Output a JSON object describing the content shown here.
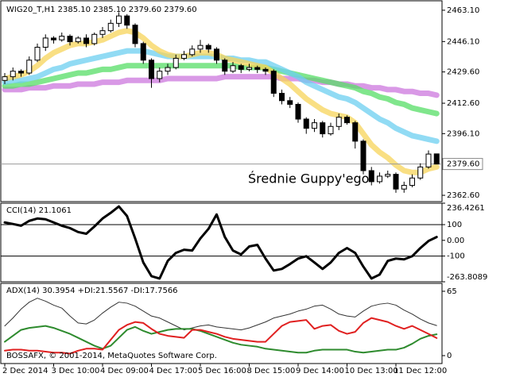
{
  "chart_data": [
    {
      "type": "candlestick",
      "title": "WIG20_T,H1  2385.10 2385.10 2379.60 2379.60",
      "annotation": "Średnie Guppy'ego",
      "categories": [
        "2 Dec 2014",
        null,
        null,
        null,
        null,
        null,
        "3 Dec 10:00",
        null,
        null,
        null,
        null,
        null,
        "4 Dec 09:00",
        null,
        null,
        null,
        null,
        null,
        "4 Dec 17:00",
        null,
        null,
        null,
        null,
        null,
        "5 Dec 16:00",
        null,
        null,
        null,
        null,
        null,
        "8 Dec 15:00",
        null,
        null,
        null,
        null,
        null,
        "9 Dec 14:00",
        null,
        null,
        null,
        null,
        null,
        "10 Dec 13:00",
        null,
        null,
        null,
        null,
        null,
        "11 Dec 12:00",
        null,
        null,
        null,
        null,
        null
      ],
      "open": [
        2425,
        2427,
        2430,
        2429,
        2436,
        2443,
        2448,
        2447,
        2449,
        2446,
        2448,
        2445,
        2450,
        2452,
        2456,
        2460,
        2455,
        2445,
        2436,
        2426,
        2430,
        2432,
        2437,
        2439,
        2442,
        2444,
        2442,
        2436,
        2430,
        2433,
        2431,
        2432,
        2431,
        2430,
        2418,
        2414,
        2412,
        2404,
        2399,
        2402,
        2396,
        2400,
        2405,
        2402,
        2392,
        2376,
        2370,
        2373,
        2374,
        2366,
        2368,
        2372,
        2378,
        2385.1
      ],
      "high": [
        2429,
        2432,
        2431,
        2438,
        2445,
        2450,
        2449,
        2451,
        2450,
        2449,
        2450,
        2451,
        2454,
        2458,
        2462,
        2461,
        2456,
        2446,
        2437,
        2432,
        2434,
        2439,
        2441,
        2444,
        2447,
        2445,
        2443,
        2437,
        2435,
        2434,
        2434,
        2433,
        2432,
        2431,
        2420,
        2416,
        2413,
        2405,
        2404,
        2403,
        2402,
        2407,
        2406,
        2403,
        2393,
        2378,
        2375,
        2376,
        2375,
        2370,
        2374,
        2380,
        2387,
        2385.1
      ],
      "low": [
        2423,
        2425,
        2427,
        2428,
        2435,
        2441,
        2445,
        2446,
        2444,
        2445,
        2443,
        2444,
        2448,
        2451,
        2454,
        2453,
        2443,
        2434,
        2421,
        2424,
        2428,
        2431,
        2436,
        2438,
        2440,
        2440,
        2434,
        2428,
        2429,
        2429,
        2430,
        2429,
        2428,
        2416,
        2412,
        2410,
        2402,
        2396,
        2397,
        2394,
        2395,
        2398,
        2401,
        2388,
        2374,
        2368,
        2369,
        2372,
        2364,
        2364,
        2367,
        2371,
        2377,
        2379.6
      ],
      "close": [
        2427,
        2430,
        2429,
        2436,
        2443,
        2448,
        2447,
        2449,
        2446,
        2448,
        2445,
        2450,
        2452,
        2456,
        2460,
        2455,
        2445,
        2436,
        2426,
        2430,
        2432,
        2437,
        2439,
        2442,
        2444,
        2442,
        2436,
        2430,
        2433,
        2431,
        2432,
        2431,
        2430,
        2418,
        2414,
        2412,
        2404,
        2399,
        2402,
        2396,
        2400,
        2405,
        2402,
        2392,
        2376,
        2370,
        2373,
        2374,
        2366,
        2368,
        2372,
        2378,
        2385,
        2379.6
      ],
      "up_color": "#ffffff",
      "down_color": "#000000",
      "series": [
        {
          "color": "#cc77dd",
          "values": [
            2420,
            2420,
            2420,
            2421,
            2421,
            2421,
            2422,
            2422,
            2422,
            2423,
            2423,
            2423,
            2424,
            2424,
            2424,
            2425,
            2425,
            2425,
            2425,
            2425,
            2426,
            2426,
            2426,
            2426,
            2426,
            2426,
            2426,
            2427,
            2427,
            2427,
            2427,
            2427,
            2427,
            2427,
            2426,
            2426,
            2426,
            2425,
            2425,
            2424,
            2424,
            2423,
            2423,
            2422,
            2422,
            2421,
            2421,
            2420,
            2420,
            2419,
            2419,
            2418,
            2418,
            2417
          ]
        },
        {
          "color": "#55dd66",
          "values": [
            2422,
            2422,
            2423,
            2423,
            2424,
            2425,
            2426,
            2427,
            2428,
            2429,
            2429,
            2430,
            2431,
            2431,
            2432,
            2433,
            2433,
            2433,
            2433,
            2433,
            2433,
            2433,
            2433,
            2433,
            2433,
            2433,
            2433,
            2433,
            2433,
            2432,
            2432,
            2432,
            2432,
            2431,
            2430,
            2429,
            2428,
            2427,
            2426,
            2425,
            2424,
            2423,
            2422,
            2421,
            2419,
            2418,
            2416,
            2415,
            2413,
            2412,
            2410,
            2409,
            2408,
            2407
          ]
        },
        {
          "color": "#6ccff0",
          "values": [
            2424,
            2425,
            2425,
            2426,
            2427,
            2429,
            2431,
            2432,
            2434,
            2435,
            2436,
            2437,
            2438,
            2439,
            2440,
            2441,
            2441,
            2441,
            2440,
            2439,
            2438,
            2438,
            2438,
            2438,
            2438,
            2438,
            2438,
            2437,
            2437,
            2436,
            2436,
            2435,
            2435,
            2433,
            2431,
            2429,
            2427,
            2424,
            2422,
            2420,
            2418,
            2416,
            2415,
            2413,
            2410,
            2407,
            2404,
            2402,
            2399,
            2397,
            2395,
            2394,
            2393,
            2392
          ]
        },
        {
          "color": "#f7d45a",
          "values": [
            2426,
            2427,
            2428,
            2430,
            2433,
            2437,
            2440,
            2442,
            2444,
            2445,
            2445,
            2446,
            2447,
            2449,
            2451,
            2452,
            2451,
            2448,
            2444,
            2441,
            2439,
            2438,
            2438,
            2439,
            2440,
            2440,
            2439,
            2437,
            2436,
            2435,
            2434,
            2433,
            2432,
            2429,
            2426,
            2423,
            2419,
            2415,
            2412,
            2409,
            2407,
            2406,
            2405,
            2402,
            2396,
            2390,
            2386,
            2383,
            2379,
            2376,
            2375,
            2375,
            2377,
            2378
          ]
        }
      ],
      "ylim": [
        2359.18,
        2468.23
      ],
      "yticks": [
        {
          "value": 2463.1,
          "label": "2463.10"
        },
        {
          "value": 2446.1,
          "label": "2446.10"
        },
        {
          "value": 2429.6,
          "label": "2429.60"
        },
        {
          "value": 2412.6,
          "label": "2412.60"
        },
        {
          "value": 2396.1,
          "label": "2396.10"
        },
        {
          "value": 2362.6,
          "label": "2362.60"
        }
      ],
      "last_price": {
        "value": 2379.6,
        "label": "2379.60"
      }
    },
    {
      "type": "line",
      "title": "CCI(14) 21.1061",
      "series": [
        {
          "color": "#000000",
          "values": [
            114,
            104,
            93,
            124,
            139,
            134,
            114,
            93,
            78,
            53,
            42,
            88,
            139,
            175,
            216,
            155,
            12,
            -141,
            -228,
            -243,
            -131,
            -80,
            -60,
            -65,
            12,
            73,
            165,
            22,
            -65,
            -90,
            -39,
            -29,
            -116,
            -192,
            -182,
            -151,
            -116,
            -101,
            -141,
            -182,
            -141,
            -80,
            -49,
            -80,
            -167,
            -243,
            -218,
            -131,
            -116,
            -121,
            -101,
            -49,
            -4,
            21.1061
          ]
        }
      ],
      "ylim": [
        -263.8089,
        236.4261
      ],
      "yticks": [
        236.4261,
        100,
        {
          "value": 0,
          "label": "0.00"
        },
        -100,
        -263.8089
      ],
      "levels": [
        100,
        -100
      ]
    },
    {
      "type": "line",
      "title": "ADX(14) 30.3954 +DI:21.5567 -DI:17.7566",
      "watermark": "BOSSAFX, © 2001-2014, MetaQuotes Software Corp.",
      "series": [
        {
          "color": "#333333",
          "values": [
            30,
            38,
            47,
            54,
            58,
            55,
            51,
            48,
            40,
            33,
            32,
            36,
            43,
            49,
            54,
            53,
            50,
            45,
            40,
            38,
            34,
            30,
            26,
            28,
            30,
            31,
            29,
            28,
            27,
            26,
            28,
            31,
            34,
            38,
            40,
            42,
            45,
            47,
            50,
            51,
            47,
            42,
            40,
            39,
            45,
            50,
            52,
            53,
            51,
            46,
            42,
            37,
            33,
            30.3954
          ]
        },
        {
          "color": "#2e8b2e",
          "values": [
            14,
            20,
            26,
            28,
            29,
            30,
            28,
            25,
            22,
            18,
            14,
            10,
            7,
            10,
            18,
            26,
            29,
            25,
            22,
            24,
            26,
            27,
            27,
            27,
            25,
            22,
            19,
            16,
            13,
            11,
            10,
            9,
            7,
            6,
            5,
            4,
            3,
            3,
            5,
            6,
            6,
            6,
            6,
            4,
            3,
            4,
            5,
            6,
            6,
            8,
            12,
            17,
            20,
            21.5567
          ]
        },
        {
          "color": "#e02020",
          "values": [
            5,
            6,
            6,
            5,
            5,
            4,
            3,
            3,
            2,
            5,
            7,
            7,
            6,
            16,
            26,
            31,
            34,
            33,
            27,
            22,
            20,
            19,
            18,
            26,
            26,
            24,
            22,
            19,
            17,
            16,
            15,
            14,
            14,
            22,
            30,
            34,
            35,
            36,
            27,
            30,
            31,
            25,
            22,
            24,
            33,
            38,
            36,
            34,
            30,
            27,
            30,
            26,
            22,
            17.7566
          ]
        }
      ],
      "ylim": [
        -8,
        73
      ],
      "yticks": [
        65,
        0
      ]
    }
  ]
}
